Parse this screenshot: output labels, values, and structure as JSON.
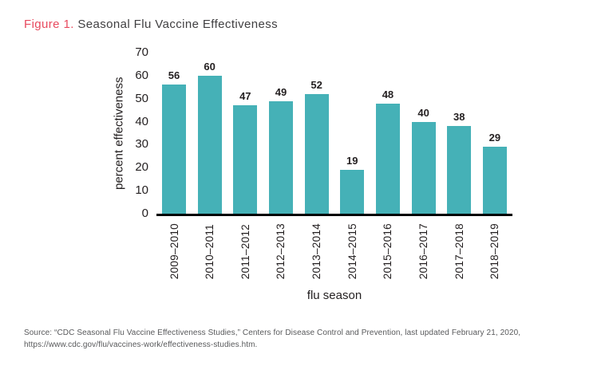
{
  "figure": {
    "label": "Figure 1.",
    "title": " Seasonal Flu Vaccine Effectiveness"
  },
  "chart_data": {
    "type": "bar",
    "title": "Seasonal Flu Vaccine Effectiveness",
    "categories": [
      "2009–2010",
      "2010–2011",
      "2011–2012",
      "2012–2013",
      "2013–2014",
      "2014–2015",
      "2015–2016",
      "2016–2017",
      "2017–2018",
      "2018–2019"
    ],
    "values": [
      56,
      60,
      47,
      49,
      52,
      19,
      48,
      40,
      38,
      29
    ],
    "xlabel": "flu season",
    "ylabel": "percent effectiveness",
    "ylim": [
      0,
      70
    ],
    "yticks": [
      0,
      10,
      20,
      30,
      40,
      50,
      60,
      70
    ],
    "bar_color": "#45b1b7",
    "grid": false,
    "legend": false,
    "value_labels": true
  },
  "source": {
    "text": "Source: “CDC Seasonal Flu Vaccine Effectiveness Studies,” Centers for Disease Control and Prevention, last updated February 21, 2020, https://www.cdc.gov/flu/vaccines-work/effectiveness-studies.htm."
  }
}
